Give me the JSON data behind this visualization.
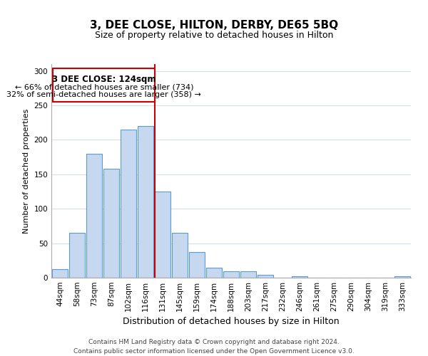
{
  "title": "3, DEE CLOSE, HILTON, DERBY, DE65 5BQ",
  "subtitle": "Size of property relative to detached houses in Hilton",
  "xlabel": "Distribution of detached houses by size in Hilton",
  "ylabel": "Number of detached properties",
  "footer_line1": "Contains HM Land Registry data © Crown copyright and database right 2024.",
  "footer_line2": "Contains public sector information licensed under the Open Government Licence v3.0.",
  "bin_labels": [
    "44sqm",
    "58sqm",
    "73sqm",
    "87sqm",
    "102sqm",
    "116sqm",
    "131sqm",
    "145sqm",
    "159sqm",
    "174sqm",
    "188sqm",
    "203sqm",
    "217sqm",
    "232sqm",
    "246sqm",
    "261sqm",
    "275sqm",
    "290sqm",
    "304sqm",
    "319sqm",
    "333sqm"
  ],
  "bar_heights": [
    12,
    65,
    180,
    158,
    215,
    220,
    125,
    65,
    37,
    14,
    9,
    9,
    4,
    0,
    2,
    0,
    0,
    0,
    0,
    0,
    2
  ],
  "bar_color": "#c5d8f0",
  "bar_edge_color": "#5b9bd5",
  "vline_color": "#cc0000",
  "annotation_title": "3 DEE CLOSE: 124sqm",
  "annotation_line1": "← 66% of detached houses are smaller (734)",
  "annotation_line2": "32% of semi-detached houses are larger (358) →",
  "annotation_box_edge": "#cc0000",
  "ylim": [
    0,
    310
  ],
  "yticks": [
    0,
    50,
    100,
    150,
    200,
    250,
    300
  ],
  "title_fontsize": 11,
  "subtitle_fontsize": 9,
  "ylabel_fontsize": 8,
  "xlabel_fontsize": 9,
  "tick_fontsize": 7.5,
  "footer_fontsize": 6.5
}
